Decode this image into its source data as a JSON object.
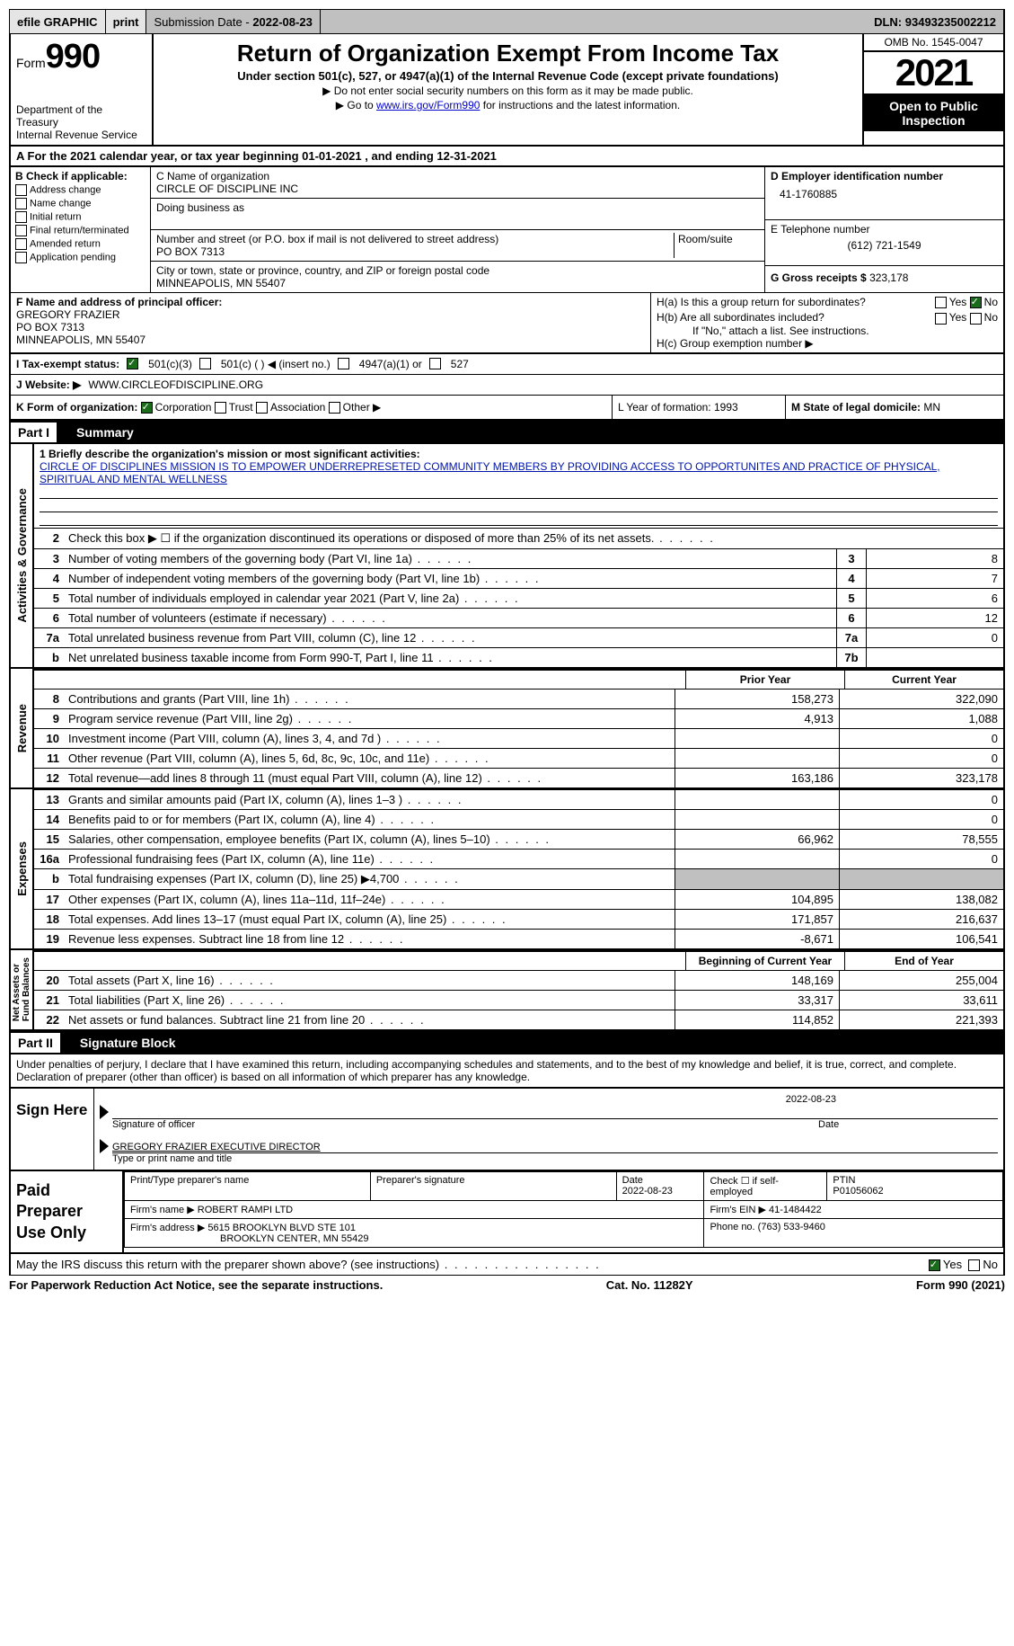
{
  "topbar": {
    "efile": "efile GRAPHIC",
    "print": "print",
    "subdate_lbl": "Submission Date -",
    "subdate": "2022-08-23",
    "dln_lbl": "DLN:",
    "dln": "93493235002212"
  },
  "header": {
    "form": "Form",
    "num": "990",
    "dept": "Department of the Treasury\nInternal Revenue Service",
    "title": "Return of Organization Exempt From Income Tax",
    "sub": "Under section 501(c), 527, or 4947(a)(1) of the Internal Revenue Code (except private foundations)",
    "note1": "▶ Do not enter social security numbers on this form as it may be made public.",
    "note2_pre": "▶ Go to ",
    "note2_link": "www.irs.gov/Form990",
    "note2_post": " for instructions and the latest information.",
    "omb": "OMB No. 1545-0047",
    "year": "2021",
    "inspect": "Open to Public Inspection"
  },
  "rowA": "A For the 2021 calendar year, or tax year beginning 01-01-2021    , and ending 12-31-2021",
  "boxB": {
    "hdr": "B Check if applicable:",
    "items": [
      "Address change",
      "Name change",
      "Initial return",
      "Final return/terminated",
      "Amended return",
      "Application pending"
    ]
  },
  "boxC": {
    "name_lbl": "C Name of organization",
    "name": "CIRCLE OF DISCIPLINE INC",
    "dba_lbl": "Doing business as",
    "addr_lbl": "Number and street (or P.O. box if mail is not delivered to street address)",
    "room_lbl": "Room/suite",
    "addr": "PO BOX 7313",
    "city_lbl": "City or town, state or province, country, and ZIP or foreign postal code",
    "city": "MINNEAPOLIS, MN  55407"
  },
  "boxD": {
    "ein_lbl": "D Employer identification number",
    "ein": "41-1760885",
    "tel_lbl": "E Telephone number",
    "tel": "(612) 721-1549",
    "gross_lbl": "G Gross receipts $",
    "gross": "323,178"
  },
  "boxF": {
    "lbl": "F Name and address of principal officer:",
    "name": "GREGORY FRAZIER",
    "addr": "PO BOX 7313",
    "city": "MINNEAPOLIS, MN  55407"
  },
  "boxH": {
    "a": "H(a)  Is this a group return for subordinates?",
    "b": "H(b)  Are all subordinates included?",
    "bnote": "If \"No,\" attach a list. See instructions.",
    "c": "H(c)  Group exemption number ▶",
    "yes": "Yes",
    "no": "No"
  },
  "rowI": {
    "lbl": "I    Tax-exempt status:",
    "o501c3": "501(c)(3)",
    "o501c": "501(c) (   ) ◀ (insert no.)",
    "o4947": "4947(a)(1) or",
    "o527": "527"
  },
  "rowJ": {
    "lbl": "J   Website: ▶",
    "val": "WWW.CIRCLEOFDISCIPLINE.ORG"
  },
  "rowK": {
    "lbl": "K Form of organization:",
    "corp": "Corporation",
    "trust": "Trust",
    "assoc": "Association",
    "other": "Other ▶"
  },
  "rowL": {
    "lbl": "L Year of formation:",
    "val": "1993"
  },
  "rowM": {
    "lbl": "M State of legal domicile:",
    "val": "MN"
  },
  "part1": {
    "num": "Part I",
    "title": "Summary"
  },
  "mission": {
    "q": "1  Briefly describe the organization's mission or most significant activities:",
    "text": "CIRCLE OF DISCIPLINES MISSION IS TO EMPOWER UNDERREPRESETED COMMUNITY MEMBERS BY PROVIDING ACCESS TO OPPORTUNITES AND PRACTICE OF PHYSICAL, SPIRITUAL AND MENTAL WELLNESS"
  },
  "lines_gov": [
    {
      "n": "2",
      "d": "Check this box ▶ ☐  if the organization discontinued its operations or disposed of more than 25% of its net assets."
    },
    {
      "n": "3",
      "d": "Number of voting members of the governing body (Part VI, line 1a)",
      "box": "3",
      "v": "8"
    },
    {
      "n": "4",
      "d": "Number of independent voting members of the governing body (Part VI, line 1b)",
      "box": "4",
      "v": "7"
    },
    {
      "n": "5",
      "d": "Total number of individuals employed in calendar year 2021 (Part V, line 2a)",
      "box": "5",
      "v": "6"
    },
    {
      "n": "6",
      "d": "Total number of volunteers (estimate if necessary)",
      "box": "6",
      "v": "12"
    },
    {
      "n": "7a",
      "d": "Total unrelated business revenue from Part VIII, column (C), line 12",
      "box": "7a",
      "v": "0"
    },
    {
      "n": "b",
      "d": "Net unrelated business taxable income from Form 990-T, Part I, line 11",
      "box": "7b",
      "v": ""
    }
  ],
  "col_hdrs": {
    "prior": "Prior Year",
    "current": "Current Year",
    "boy": "Beginning of Current Year",
    "eoy": "End of Year"
  },
  "revenue": [
    {
      "n": "8",
      "d": "Contributions and grants (Part VIII, line 1h)",
      "p": "158,273",
      "c": "322,090"
    },
    {
      "n": "9",
      "d": "Program service revenue (Part VIII, line 2g)",
      "p": "4,913",
      "c": "1,088"
    },
    {
      "n": "10",
      "d": "Investment income (Part VIII, column (A), lines 3, 4, and 7d )",
      "p": "",
      "c": "0"
    },
    {
      "n": "11",
      "d": "Other revenue (Part VIII, column (A), lines 5, 6d, 8c, 9c, 10c, and 11e)",
      "p": "",
      "c": "0"
    },
    {
      "n": "12",
      "d": "Total revenue—add lines 8 through 11 (must equal Part VIII, column (A), line 12)",
      "p": "163,186",
      "c": "323,178"
    }
  ],
  "expenses": [
    {
      "n": "13",
      "d": "Grants and similar amounts paid (Part IX, column (A), lines 1–3 )",
      "p": "",
      "c": "0"
    },
    {
      "n": "14",
      "d": "Benefits paid to or for members (Part IX, column (A), line 4)",
      "p": "",
      "c": "0"
    },
    {
      "n": "15",
      "d": "Salaries, other compensation, employee benefits (Part IX, column (A), lines 5–10)",
      "p": "66,962",
      "c": "78,555"
    },
    {
      "n": "16a",
      "d": "Professional fundraising fees (Part IX, column (A), line 11e)",
      "p": "",
      "c": "0"
    },
    {
      "n": "b",
      "d": "Total fundraising expenses (Part IX, column (D), line 25) ▶4,700",
      "p": "GREY",
      "c": "GREY"
    },
    {
      "n": "17",
      "d": "Other expenses (Part IX, column (A), lines 11a–11d, 11f–24e)",
      "p": "104,895",
      "c": "138,082"
    },
    {
      "n": "18",
      "d": "Total expenses. Add lines 13–17 (must equal Part IX, column (A), line 25)",
      "p": "171,857",
      "c": "216,637"
    },
    {
      "n": "19",
      "d": "Revenue less expenses. Subtract line 18 from line 12",
      "p": "-8,671",
      "c": "106,541"
    }
  ],
  "netassets": [
    {
      "n": "20",
      "d": "Total assets (Part X, line 16)",
      "p": "148,169",
      "c": "255,004"
    },
    {
      "n": "21",
      "d": "Total liabilities (Part X, line 26)",
      "p": "33,317",
      "c": "33,611"
    },
    {
      "n": "22",
      "d": "Net assets or fund balances. Subtract line 21 from line 20",
      "p": "114,852",
      "c": "221,393"
    }
  ],
  "vlabels": {
    "gov": "Activities & Governance",
    "rev": "Revenue",
    "exp": "Expenses",
    "net": "Net Assets or\nFund Balances"
  },
  "part2": {
    "num": "Part II",
    "title": "Signature Block"
  },
  "sig": {
    "intro": "Under penalties of perjury, I declare that I have examined this return, including accompanying schedules and statements, and to the best of my knowledge and belief, it is true, correct, and complete. Declaration of preparer (other than officer) is based on all information of which preparer has any knowledge.",
    "here": "Sign Here",
    "sigoff": "Signature of officer",
    "date": "Date",
    "datev": "2022-08-23",
    "name": "GREGORY FRAZIER  EXECUTIVE DIRECTOR",
    "nametype": "Type or print name and title"
  },
  "prep": {
    "lbl": "Paid Preparer Use Only",
    "ptname_lbl": "Print/Type preparer's name",
    "psig_lbl": "Preparer's signature",
    "pdate_lbl": "Date",
    "pdate": "2022-08-23",
    "chk_lbl": "Check ☐ if self-employed",
    "ptin_lbl": "PTIN",
    "ptin": "P01056062",
    "firm_lbl": "Firm's name    ▶",
    "firm": "ROBERT RAMPI LTD",
    "fein_lbl": "Firm's EIN ▶",
    "fein": "41-1484422",
    "addr_lbl": "Firm's address ▶",
    "addr1": "5615 BROOKLYN BLVD STE 101",
    "addr2": "BROOKLYN CENTER, MN  55429",
    "phone_lbl": "Phone no.",
    "phone": "(763) 533-9460"
  },
  "footerq": "May the IRS discuss this return with the preparer shown above? (see instructions)",
  "footer": {
    "l": "For Paperwork Reduction Act Notice, see the separate instructions.",
    "m": "Cat. No. 11282Y",
    "r": "Form 990 (2021)"
  },
  "colors": {
    "link": "#0000cc",
    "text_blue": "#0015aa",
    "black": "#000000",
    "grey": "#c0c0c0",
    "green_check": "#1a6b1a"
  }
}
